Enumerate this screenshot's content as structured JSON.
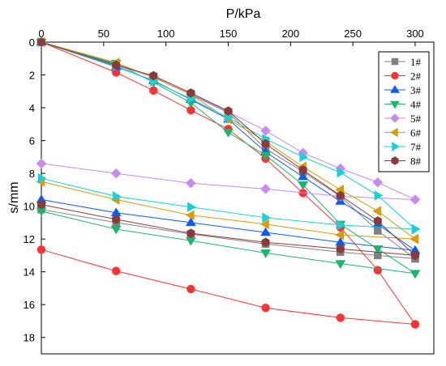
{
  "chart_data": {
    "type": "line",
    "xlabel": "P/kPa",
    "ylabel": "s/mm",
    "xlim": [
      0,
      315
    ],
    "ylim": [
      0,
      19
    ],
    "y_inverted": true,
    "x_axis_position": "top",
    "x_ticks": [
      0,
      50,
      100,
      150,
      200,
      250,
      300
    ],
    "y_ticks": [
      0,
      2,
      4,
      6,
      8,
      10,
      12,
      14,
      16,
      18
    ],
    "grid": false,
    "legend_position": "top-right",
    "series": [
      {
        "name": "1#",
        "color": "#808080",
        "marker": "square",
        "loading": [
          [
            0,
            0
          ],
          [
            60,
            1.35
          ],
          [
            90,
            2.1
          ],
          [
            120,
            3.2
          ],
          [
            150,
            4.3
          ],
          [
            180,
            6.5
          ],
          [
            210,
            7.9
          ],
          [
            240,
            9.4
          ],
          [
            270,
            11.5
          ],
          [
            300,
            13.2
          ]
        ],
        "unloading": [
          [
            300,
            13.2
          ],
          [
            270,
            13.0
          ],
          [
            240,
            12.8
          ],
          [
            180,
            12.3
          ],
          [
            120,
            11.7
          ],
          [
            60,
            11.0
          ],
          [
            0,
            10.2
          ]
        ]
      },
      {
        "name": "2#",
        "color": "#ff3333",
        "marker": "circle",
        "loading": [
          [
            0,
            0
          ],
          [
            60,
            1.85
          ],
          [
            90,
            2.95
          ],
          [
            120,
            4.15
          ],
          [
            150,
            5.3
          ],
          [
            180,
            7.1
          ],
          [
            210,
            9.2
          ],
          [
            240,
            11.3
          ],
          [
            270,
            13.9
          ],
          [
            300,
            17.2
          ]
        ],
        "unloading": [
          [
            300,
            17.2
          ],
          [
            240,
            16.8
          ],
          [
            180,
            16.2
          ],
          [
            120,
            15.05
          ],
          [
            60,
            13.95
          ],
          [
            0,
            12.65
          ]
        ]
      },
      {
        "name": "3#",
        "color": "#0a5cf5",
        "marker": "triangle-up",
        "loading": [
          [
            0,
            0
          ],
          [
            60,
            1.5
          ],
          [
            90,
            2.35
          ],
          [
            120,
            3.5
          ],
          [
            150,
            4.7
          ],
          [
            180,
            6.7
          ],
          [
            210,
            8.2
          ],
          [
            240,
            9.7
          ],
          [
            270,
            11.1
          ],
          [
            300,
            12.7
          ]
        ],
        "unloading": [
          [
            300,
            12.7
          ],
          [
            240,
            12.2
          ],
          [
            180,
            11.6
          ],
          [
            120,
            11.0
          ],
          [
            60,
            10.4
          ],
          [
            0,
            9.6
          ]
        ]
      },
      {
        "name": "4#",
        "color": "#1bb56b",
        "marker": "triangle-down",
        "loading": [
          [
            0,
            0
          ],
          [
            60,
            1.3
          ],
          [
            90,
            2.45
          ],
          [
            120,
            3.7
          ],
          [
            150,
            5.5
          ],
          [
            180,
            6.9
          ],
          [
            210,
            8.7
          ],
          [
            240,
            11.1
          ],
          [
            270,
            12.6
          ],
          [
            300,
            14.1
          ]
        ],
        "unloading": [
          [
            300,
            14.1
          ],
          [
            240,
            13.5
          ],
          [
            180,
            12.85
          ],
          [
            120,
            12.1
          ],
          [
            60,
            11.4
          ],
          [
            0,
            10.3
          ]
        ]
      },
      {
        "name": "5#",
        "color": "#c98af0",
        "marker": "diamond",
        "loading": [
          [
            0,
            0
          ],
          [
            60,
            1.4
          ],
          [
            90,
            2.15
          ],
          [
            120,
            3.15
          ],
          [
            150,
            4.25
          ],
          [
            180,
            5.4
          ],
          [
            210,
            6.75
          ],
          [
            240,
            7.7
          ],
          [
            270,
            8.55
          ],
          [
            300,
            9.6
          ]
        ],
        "unloading": [
          [
            300,
            9.6
          ],
          [
            240,
            9.4
          ],
          [
            180,
            8.95
          ],
          [
            120,
            8.6
          ],
          [
            60,
            8.0
          ],
          [
            0,
            7.4
          ]
        ]
      },
      {
        "name": "6#",
        "color": "#d99a0b",
        "marker": "triangle-left",
        "loading": [
          [
            0,
            0
          ],
          [
            60,
            1.25
          ],
          [
            90,
            2.15
          ],
          [
            120,
            3.2
          ],
          [
            150,
            4.7
          ],
          [
            180,
            6.05
          ],
          [
            210,
            7.6
          ],
          [
            240,
            9.0
          ],
          [
            270,
            10.3
          ],
          [
            300,
            12.0
          ]
        ],
        "unloading": [
          [
            300,
            12.0
          ],
          [
            240,
            11.75
          ],
          [
            180,
            11.1
          ],
          [
            120,
            10.55
          ],
          [
            60,
            9.6
          ],
          [
            0,
            8.5
          ]
        ]
      },
      {
        "name": "7#",
        "color": "#14d2d8",
        "marker": "triangle-right",
        "loading": [
          [
            0,
            0
          ],
          [
            60,
            1.45
          ],
          [
            90,
            2.4
          ],
          [
            120,
            3.45
          ],
          [
            150,
            4.6
          ],
          [
            180,
            5.9
          ],
          [
            210,
            7.0
          ],
          [
            240,
            7.95
          ],
          [
            270,
            9.35
          ],
          [
            300,
            11.4
          ]
        ],
        "unloading": [
          [
            300,
            11.4
          ],
          [
            240,
            11.15
          ],
          [
            180,
            10.7
          ],
          [
            120,
            10.05
          ],
          [
            60,
            9.4
          ],
          [
            0,
            8.3
          ]
        ]
      },
      {
        "name": "8#",
        "color": "#8b3a3a",
        "marker": "hexagon",
        "loading": [
          [
            0,
            0
          ],
          [
            60,
            1.4
          ],
          [
            90,
            2.05
          ],
          [
            120,
            3.1
          ],
          [
            150,
            4.2
          ],
          [
            180,
            6.2
          ],
          [
            210,
            7.8
          ],
          [
            240,
            9.35
          ],
          [
            270,
            10.9
          ],
          [
            300,
            13.0
          ]
        ],
        "unloading": [
          [
            300,
            13.0
          ],
          [
            240,
            12.6
          ],
          [
            180,
            12.2
          ],
          [
            120,
            11.65
          ],
          [
            60,
            10.8
          ],
          [
            0,
            9.9
          ]
        ]
      }
    ]
  }
}
